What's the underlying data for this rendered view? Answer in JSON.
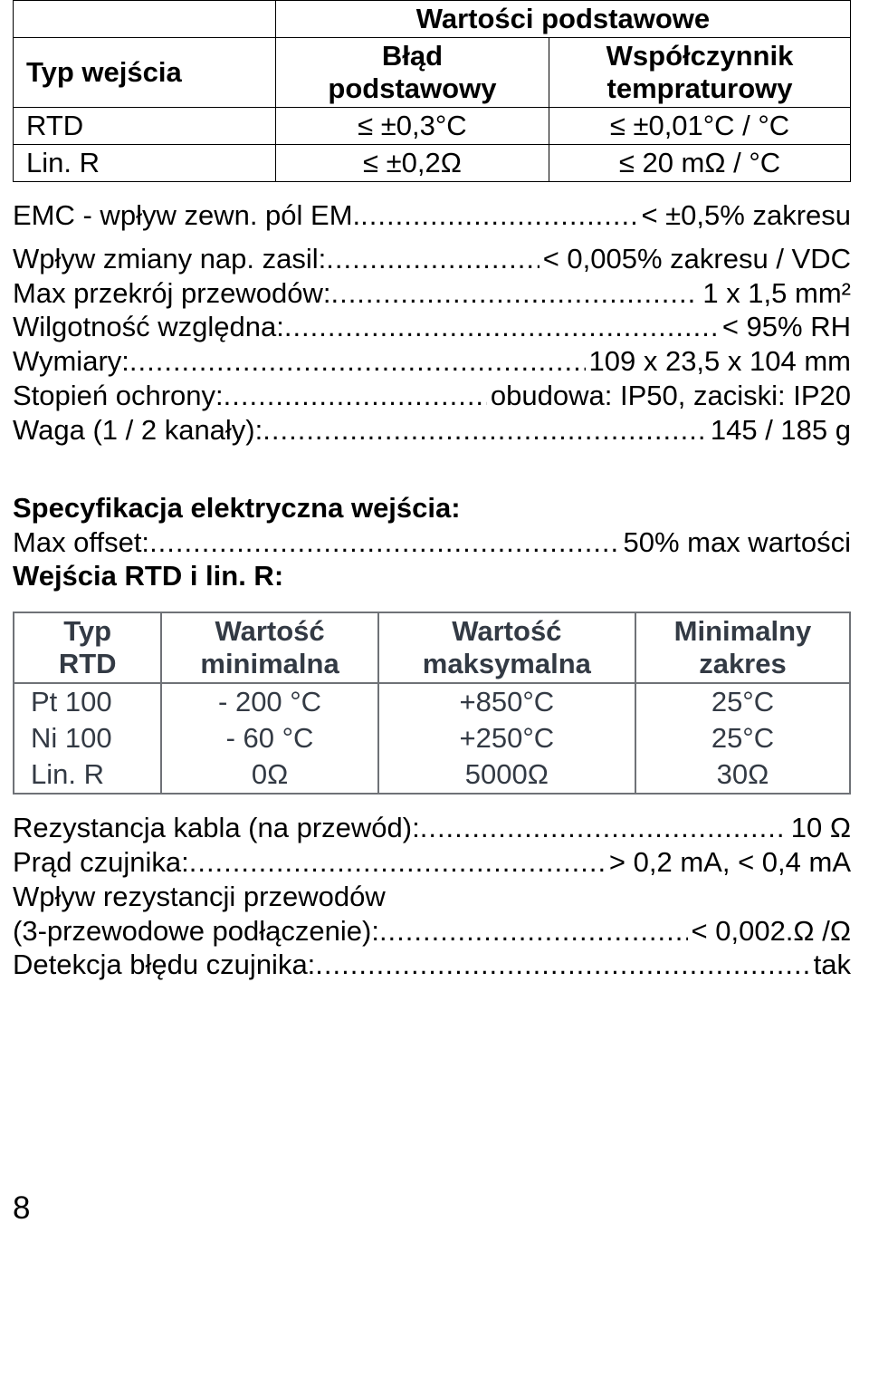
{
  "table1": {
    "title": "Wartości podstawowe",
    "headers": {
      "col1": "Typ wejścia",
      "col2a": "Błąd",
      "col2b": "podstawowy",
      "col3a": "Współczynnik",
      "col3b": "tempraturowy"
    },
    "rows": [
      {
        "type": "RTD",
        "err": "≤ ±0,3°C",
        "coef": "≤ ±0,01°C / °C"
      },
      {
        "type": "Lin. R",
        "err": "≤ ±0,2Ω",
        "coef": "≤ 20 mΩ / °C"
      }
    ]
  },
  "specs_top": [
    {
      "label": "EMC - wpływ zewn. pól EM.",
      "value": "< ±0,5% zakresu"
    }
  ],
  "specs_block2": [
    {
      "label": "Wpływ zmiany nap. zasil:",
      "value": "< 0,005% zakresu / VDC"
    },
    {
      "label": "Max przekrój przewodów:",
      "value": "1 x 1,5 mm²"
    },
    {
      "label": "Wilgotność względna:",
      "value": "< 95% RH"
    },
    {
      "label": "Wymiary:",
      "value": "109 x 23,5 x 104 mm"
    },
    {
      "label": "Stopień ochrony:",
      "value": "obudowa: IP50, zaciski: IP20"
    },
    {
      "label": "Waga (1 / 2 kanały):",
      "value": "145 / 185 g"
    }
  ],
  "spec_section_title": "Specyfikacja elektryczna  wejścia:",
  "specs_block3": [
    {
      "label": "Max offset:",
      "value": "50% max wartości"
    }
  ],
  "rtd_title": "Wejścia RTD i lin. R:",
  "table2": {
    "headers": {
      "c1a": "Typ",
      "c1b": "RTD",
      "c2a": "Wartość",
      "c2b": "minimalna",
      "c3a": "Wartość",
      "c3b": "maksymalna",
      "c4a": "Minimalny",
      "c4b": "zakres"
    },
    "rows": [
      {
        "type": "Pt 100",
        "min": "- 200 °C",
        "max": "+850°C",
        "range": "25°C"
      },
      {
        "type": "Ni 100",
        "min": "- 60 °C",
        "max": "+250°C",
        "range": "25°C"
      },
      {
        "type": "Lin. R",
        "min": "0Ω",
        "max": "5000Ω",
        "range": "30Ω"
      }
    ]
  },
  "specs_block4": [
    {
      "label": "Rezystancja kabla (na przewód):",
      "value": "10 Ω"
    },
    {
      "label": "Prąd czujnika:",
      "value": "> 0,2 mA, < 0,4 mA"
    }
  ],
  "line_plain": "Wpływ rezystancji przewodów",
  "specs_block5": [
    {
      "label": "(3-przewodowe podłączenie):",
      "value": "< 0,002.Ω /Ω"
    },
    {
      "label": "Detekcja błędu czujnika:",
      "value": "tak"
    }
  ],
  "page_number": "8",
  "colors": {
    "text": "#000000",
    "table2_border": "#6f7277",
    "table2_text": "#333a44",
    "background": "#ffffff"
  }
}
